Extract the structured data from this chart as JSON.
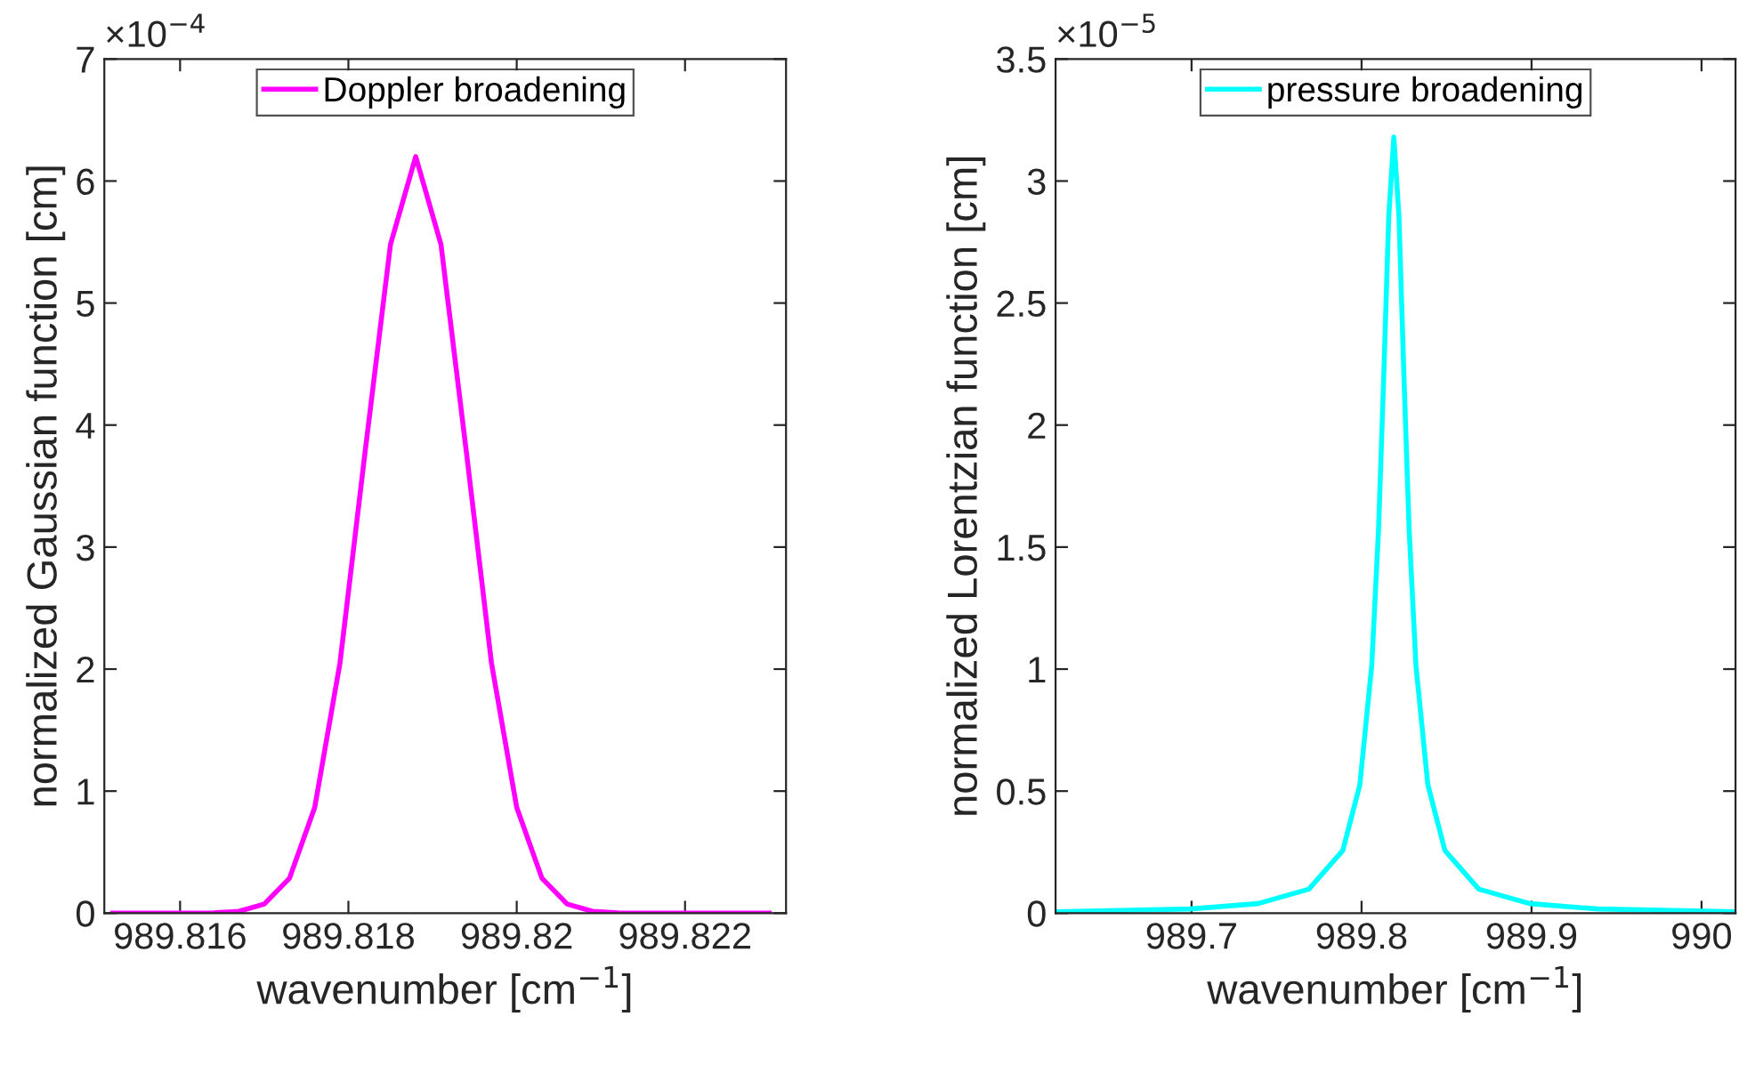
{
  "chart_data": [
    {
      "type": "line",
      "xlabel": "wavenumber [cm$^{−1}$]",
      "ylabel": "normalized Gaussian function [cm]",
      "annotations": [
        "×10$^{−4}$"
      ],
      "x": [
        989.8152,
        989.8161,
        989.8164,
        989.8167,
        989.817,
        989.8173,
        989.8176,
        989.8179,
        989.8182,
        989.8185,
        989.8188,
        989.8191,
        989.8194,
        989.8197,
        989.82,
        989.8203,
        989.8206,
        989.8209,
        989.8212,
        989.8215,
        989.8218,
        989.8221,
        989.823
      ],
      "series": [
        {
          "name": "Doppler broadening",
          "color": "#ff00ff",
          "values": [
            0,
            0,
            0.002,
            0.015,
            0.074,
            0.286,
            0.866,
            2.05,
            3.79,
            5.48,
            6.2,
            5.48,
            3.79,
            2.05,
            0.866,
            0.286,
            0.074,
            0.015,
            0.002,
            0,
            0,
            0,
            0
          ]
        }
      ],
      "xlim": [
        989.8151,
        989.8232
      ],
      "ylim": [
        0,
        7
      ],
      "xticks": [
        989.816,
        989.818,
        989.82,
        989.822
      ],
      "yticks": [
        0,
        1,
        2,
        3,
        4,
        5,
        6,
        7
      ],
      "legend": "top",
      "grid": false
    },
    {
      "type": "line",
      "xlabel": "wavenumber [cm$^{−1}$]",
      "ylabel": "normalized Lorentzian function [cm]",
      "annotations": [
        "×10$^{−5}$"
      ],
      "x": [
        989.62,
        989.699,
        989.739,
        989.769,
        989.789,
        989.799,
        989.806,
        989.81,
        989.813,
        989.816,
        989.819,
        989.822,
        989.825,
        989.828,
        989.832,
        989.839,
        989.849,
        989.869,
        989.899,
        989.939,
        990.02
      ],
      "series": [
        {
          "name": "pressure broadening",
          "color": "#00ffff",
          "values": [
            0.006,
            0.017,
            0.039,
            0.098,
            0.257,
            0.526,
            1.015,
            1.572,
            2.186,
            2.856,
            3.18,
            2.856,
            2.186,
            1.572,
            1.015,
            0.526,
            0.257,
            0.098,
            0.039,
            0.017,
            0.006
          ]
        }
      ],
      "xlim": [
        989.62,
        990.02
      ],
      "ylim": [
        0,
        3.5
      ],
      "xticks": [
        989.7,
        989.8,
        989.9,
        990
      ],
      "yticks": [
        0,
        0.5,
        1,
        1.5,
        2,
        2.5,
        3,
        3.5
      ],
      "legend": "top",
      "grid": false
    }
  ]
}
